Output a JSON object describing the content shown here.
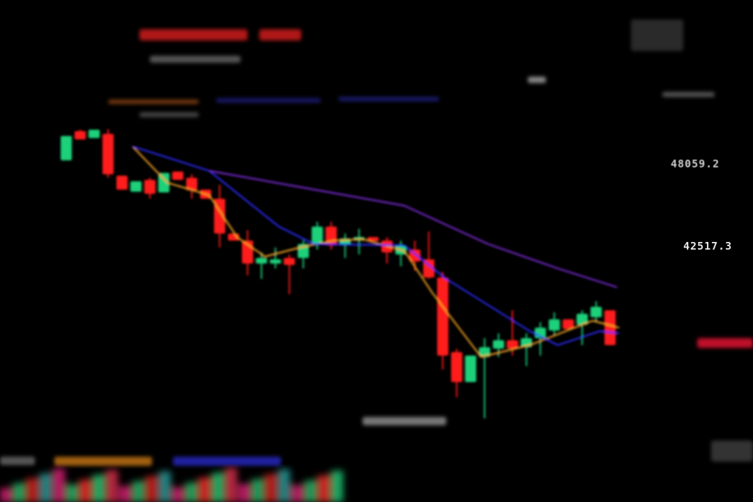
{
  "chart_data": {
    "type": "candlestick",
    "title": "",
    "xlabel": "",
    "ylabel": "",
    "ylim": [
      30500,
      51000
    ],
    "grid": false,
    "colors": {
      "up": "#1fd17a",
      "down": "#ff1a1a",
      "ma_fast": "#f0a020",
      "ma_mid": "#2a2aff",
      "ma_slow": "#7a2ad8",
      "background": "#000000"
    },
    "axis_labels": [
      "48059.2",
      "42517.3"
    ],
    "candles": [
      {
        "i": 1,
        "o": 48245,
        "h": 49875,
        "l": 48245,
        "c": 49875
      },
      {
        "i": 2,
        "o": 50201,
        "h": 50294,
        "l": 49642,
        "c": 49642
      },
      {
        "i": 3,
        "o": 49735,
        "h": 50294,
        "l": 49735,
        "c": 50294
      },
      {
        "i": 4,
        "o": 50015,
        "h": 50341,
        "l": 47081,
        "c": 47313
      },
      {
        "i": 5,
        "o": 47220,
        "h": 47220,
        "l": 46289,
        "c": 46289
      },
      {
        "i": 6,
        "o": 46149,
        "h": 46848,
        "l": 46149,
        "c": 46848
      },
      {
        "i": 7,
        "o": 46941,
        "h": 47081,
        "l": 45684,
        "c": 46010
      },
      {
        "i": 8,
        "o": 46103,
        "h": 47407,
        "l": 46103,
        "c": 47407
      },
      {
        "i": 9,
        "o": 47500,
        "h": 47500,
        "l": 46941,
        "c": 46941
      },
      {
        "i": 10,
        "o": 47081,
        "h": 47313,
        "l": 45684,
        "c": 46242
      },
      {
        "i": 11,
        "o": 46289,
        "h": 46289,
        "l": 45684,
        "c": 45684
      },
      {
        "i": 12,
        "o": 45684,
        "h": 46615,
        "l": 42424,
        "c": 43355
      },
      {
        "i": 13,
        "o": 43355,
        "h": 43355,
        "l": 42889,
        "c": 42889
      },
      {
        "i": 14,
        "o": 42889,
        "h": 43588,
        "l": 40561,
        "c": 41353
      },
      {
        "i": 15,
        "o": 41353,
        "h": 42098,
        "l": 40328,
        "c": 41725
      },
      {
        "i": 16,
        "o": 41353,
        "h": 42424,
        "l": 41027,
        "c": 41632
      },
      {
        "i": 17,
        "o": 41725,
        "h": 41958,
        "l": 39303,
        "c": 41259
      },
      {
        "i": 18,
        "o": 41725,
        "h": 42889,
        "l": 41027,
        "c": 42656
      },
      {
        "i": 19,
        "o": 42656,
        "h": 44147,
        "l": 42284,
        "c": 43821
      },
      {
        "i": 20,
        "o": 43821,
        "h": 44147,
        "l": 42284,
        "c": 42563
      },
      {
        "i": 21,
        "o": 42563,
        "h": 43355,
        "l": 41725,
        "c": 43029
      },
      {
        "i": 22,
        "o": 42889,
        "h": 43681,
        "l": 41958,
        "c": 43122
      },
      {
        "i": 23,
        "o": 43122,
        "h": 43122,
        "l": 42843,
        "c": 42843
      },
      {
        "i": 24,
        "o": 42889,
        "h": 43122,
        "l": 41353,
        "c": 42098
      },
      {
        "i": 25,
        "o": 41958,
        "h": 42889,
        "l": 41166,
        "c": 42563
      },
      {
        "i": 26,
        "o": 42284,
        "h": 42889,
        "l": 40887,
        "c": 41492
      },
      {
        "i": 27,
        "o": 41632,
        "h": 43495,
        "l": 40328,
        "c": 40421
      },
      {
        "i": 28,
        "o": 40421,
        "h": 40794,
        "l": 34274,
        "c": 35205
      },
      {
        "i": 29,
        "o": 35438,
        "h": 35671,
        "l": 32411,
        "c": 33436
      },
      {
        "i": 30,
        "o": 33436,
        "h": 35205,
        "l": 33436,
        "c": 35205
      },
      {
        "i": 31,
        "o": 35112,
        "h": 36370,
        "l": 31014,
        "c": 35764
      },
      {
        "i": 32,
        "o": 35671,
        "h": 36696,
        "l": 35112,
        "c": 36230
      },
      {
        "i": 33,
        "o": 36230,
        "h": 38232,
        "l": 35205,
        "c": 35671
      },
      {
        "i": 34,
        "o": 35764,
        "h": 36696,
        "l": 34507,
        "c": 36370
      },
      {
        "i": 35,
        "o": 36370,
        "h": 37441,
        "l": 35205,
        "c": 37068
      },
      {
        "i": 36,
        "o": 36882,
        "h": 38093,
        "l": 36602,
        "c": 37627
      },
      {
        "i": 37,
        "o": 37627,
        "h": 37627,
        "l": 36975,
        "c": 36975
      },
      {
        "i": 38,
        "o": 37254,
        "h": 38232,
        "l": 35904,
        "c": 37999
      },
      {
        "i": 39,
        "o": 37767,
        "h": 38838,
        "l": 37534,
        "c": 38465
      },
      {
        "i": 40,
        "o": 38232,
        "h": 38232,
        "l": 35904,
        "c": 35904
      }
    ],
    "series": [
      {
        "key": "ma_fast",
        "points": [
          [
            5.75,
            49177
          ],
          [
            8.25,
            46754
          ],
          [
            11.25,
            45918
          ],
          [
            13.25,
            43122
          ],
          [
            15.25,
            41818
          ],
          [
            17.75,
            42424
          ],
          [
            20.25,
            42889
          ],
          [
            22.25,
            42983
          ],
          [
            25.25,
            42191
          ],
          [
            27.25,
            39397
          ],
          [
            30.75,
            35112
          ],
          [
            34.25,
            35904
          ],
          [
            38.75,
            37534
          ],
          [
            40.65,
            37068
          ]
        ]
      },
      {
        "key": "ma_mid",
        "points": [
          [
            5.75,
            49177
          ],
          [
            11.25,
            47546
          ],
          [
            16.25,
            43821
          ],
          [
            18.75,
            42656
          ],
          [
            25.25,
            42563
          ],
          [
            28.25,
            40328
          ],
          [
            34.25,
            36835
          ],
          [
            36.25,
            35904
          ],
          [
            39.25,
            36835
          ],
          [
            40.65,
            36696
          ]
        ]
      },
      {
        "key": "ma_slow",
        "points": [
          [
            11.25,
            47546
          ],
          [
            18.25,
            46382
          ],
          [
            25.25,
            45218
          ],
          [
            31.25,
            42656
          ],
          [
            36.25,
            41027
          ],
          [
            40.5,
            39770
          ]
        ]
      }
    ]
  }
}
